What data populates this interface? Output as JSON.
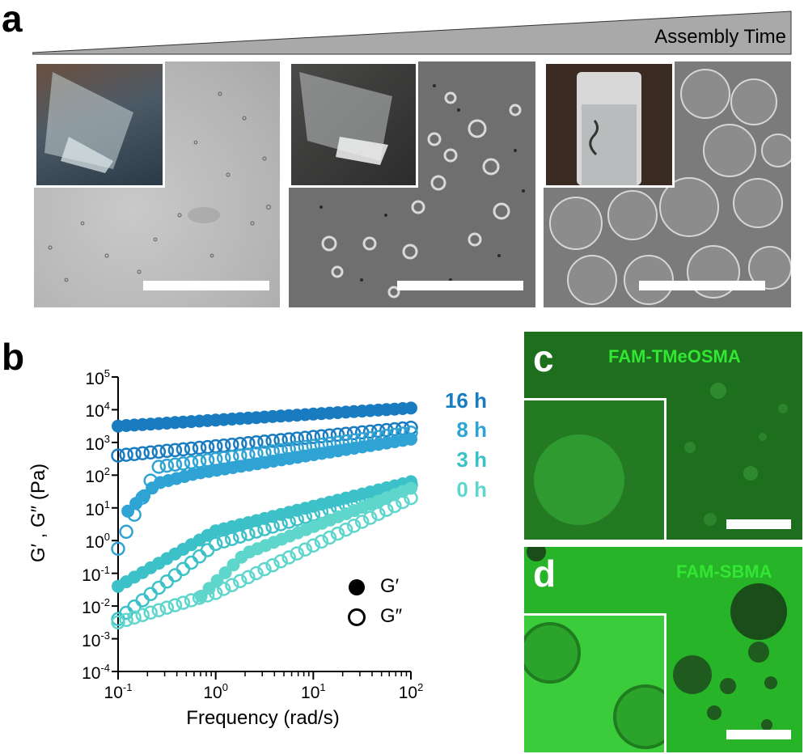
{
  "panel_a": {
    "letter": "a",
    "banner_text": "Assembly Time"
  },
  "panel_b": {
    "letter": "b",
    "y_axis_label": "G′ , G″ (Pa)",
    "x_axis_label": "Frequency (rad/s)",
    "y_ticks": [
      {
        "base": "10",
        "exp": "5"
      },
      {
        "base": "10",
        "exp": "4"
      },
      {
        "base": "10",
        "exp": "3"
      },
      {
        "base": "10",
        "exp": "2"
      },
      {
        "base": "10",
        "exp": "1"
      },
      {
        "base": "10",
        "exp": "0"
      },
      {
        "base": "10",
        "exp": "-1"
      },
      {
        "base": "10",
        "exp": "-2"
      },
      {
        "base": "10",
        "exp": "-3"
      },
      {
        "base": "10",
        "exp": "-4"
      }
    ],
    "x_ticks": [
      {
        "base": "10",
        "exp": "-1"
      },
      {
        "base": "10",
        "exp": "0"
      },
      {
        "base": "10",
        "exp": "1"
      },
      {
        "base": "10",
        "exp": "2"
      }
    ],
    "time_labels": [
      "16 h",
      "8 h",
      "3 h",
      "0 h"
    ],
    "legend": {
      "filled": "G′",
      "open": "G″"
    }
  },
  "chart_data": {
    "type": "scatter",
    "x_scale": "log",
    "y_scale": "log",
    "xlim": [
      0.1,
      100
    ],
    "ylim": [
      0.0001,
      100000
    ],
    "xlabel": "Frequency (rad/s)",
    "ylabel": "G′ , G″ (Pa)",
    "legend_position": "bottom-right",
    "series": [
      {
        "name": "16 h",
        "color": "#1a7cc0",
        "G_prime": {
          "logx": [
            -1,
            2
          ],
          "logy": [
            3.5,
            4.05
          ]
        },
        "G_double_prime": {
          "logx": [
            -1,
            2
          ],
          "logy": [
            2.6,
            3.45
          ]
        }
      },
      {
        "name": "8 h",
        "color": "#2ea3d4",
        "G_prime": {
          "logx": [
            -0.9,
            -0.6,
            -0.2,
            2
          ],
          "logy": [
            0.9,
            1.75,
            2.05,
            3.1
          ]
        },
        "G_double_prime": {
          "logx": [
            -1,
            -0.6,
            2
          ],
          "logy": [
            -0.25,
            2.25,
            3.3
          ]
        }
      },
      {
        "name": "3 h",
        "color": "#3dc1c8",
        "G_prime": {
          "logx": [
            -1,
            0,
            2
          ],
          "logy": [
            -1.4,
            0.3,
            1.8
          ]
        },
        "G_double_prime": {
          "logx": [
            -1,
            0,
            2
          ],
          "logy": [
            -2.4,
            -0.1,
            1.7
          ]
        }
      },
      {
        "name": "0 h",
        "color": "#5fd6cc",
        "G_prime": {
          "logx": [
            -0.15,
            0.3,
            2
          ],
          "logy": [
            -1.7,
            -0.4,
            1.6
          ]
        },
        "G_double_prime": {
          "logx": [
            -1,
            0,
            2
          ],
          "logy": [
            -2.5,
            -1.6,
            1.3
          ]
        }
      }
    ]
  },
  "panel_c": {
    "letter": "c",
    "label": "FAM-TMeOSMA"
  },
  "panel_d": {
    "letter": "d",
    "label": "FAM-SBMA"
  }
}
